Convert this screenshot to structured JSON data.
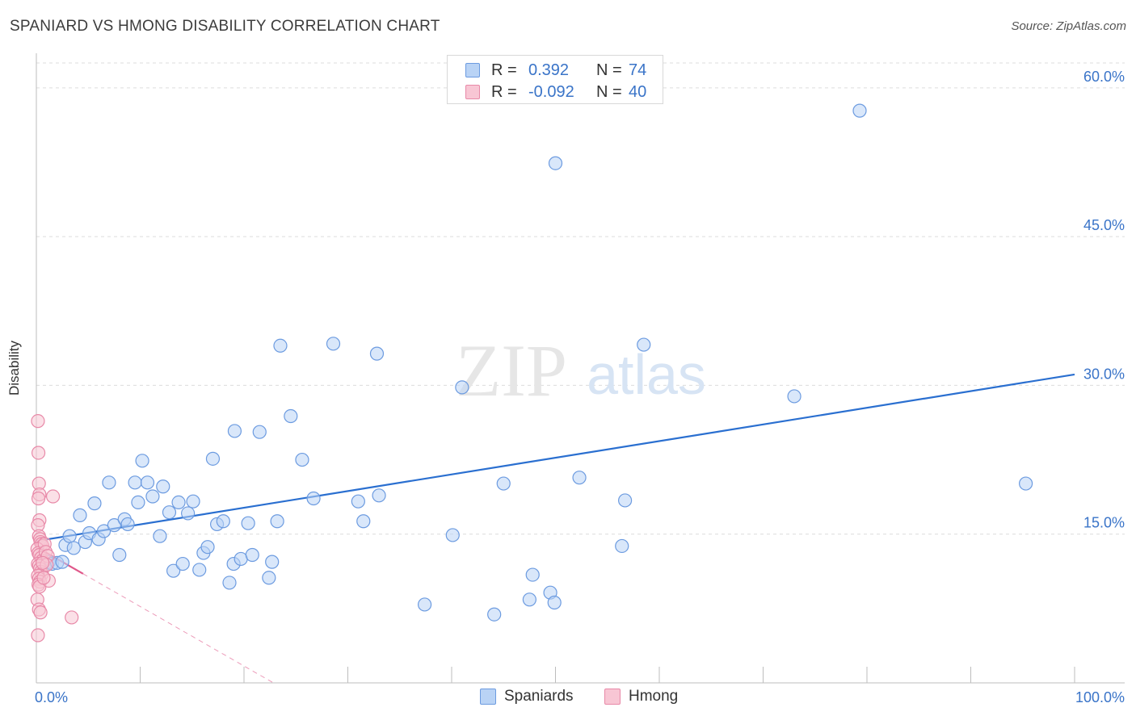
{
  "title": "SPANIARD VS HMONG DISABILITY CORRELATION CHART",
  "source": "Source: ZipAtlas.com",
  "watermark": {
    "zip": "ZIP",
    "atlas": "atlas"
  },
  "colors": {
    "spaniards_fill": "#b9d3f5",
    "spaniards_stroke": "#6c9be0",
    "spaniards_line": "#2a6fd0",
    "hmong_fill": "#f8c6d4",
    "hmong_stroke": "#e889a8",
    "hmong_line": "#e0588a",
    "axis_text": "#3a74c8",
    "grid": "#dcdcdc"
  },
  "legend": {
    "rows": [
      {
        "r_label": "R =",
        "r_value": "0.392",
        "n_label": "N =",
        "n_value": "74"
      },
      {
        "r_label": "R =",
        "r_value": "-0.092",
        "n_label": "N =",
        "n_value": "40"
      }
    ]
  },
  "bottom_legend": [
    "Spaniards",
    "Hmong"
  ],
  "chart_data": {
    "type": "scatter",
    "title": "SPANIARD VS HMONG DISABILITY CORRELATION CHART",
    "xlabel": "",
    "ylabel": "Disability",
    "xlim": [
      0,
      100
    ],
    "ylim": [
      0,
      63
    ],
    "x_tick_labels": [
      {
        "value": 0,
        "label": "0.0%"
      },
      {
        "value": 100,
        "label": "100.0%"
      }
    ],
    "y_tick_labels": [
      {
        "value": 15,
        "label": "15.0%"
      },
      {
        "value": 30,
        "label": "30.0%"
      },
      {
        "value": 45,
        "label": "45.0%"
      },
      {
        "value": 60,
        "label": "60.0%"
      }
    ],
    "series": [
      {
        "name": "Spaniards",
        "r": 0.392,
        "n": 74,
        "trend": {
          "x": [
            0,
            100
          ],
          "y": [
            14.3,
            31.1
          ],
          "dashed_x": null
        },
        "points": [
          [
            0.8,
            11.8
          ],
          [
            1.2,
            12.2
          ],
          [
            1.5,
            12.0
          ],
          [
            2.0,
            12.1
          ],
          [
            2.5,
            12.2
          ],
          [
            2.8,
            13.9
          ],
          [
            3.2,
            14.8
          ],
          [
            3.6,
            13.6
          ],
          [
            4.2,
            16.9
          ],
          [
            4.7,
            14.2
          ],
          [
            5.1,
            15.1
          ],
          [
            5.6,
            18.1
          ],
          [
            6.0,
            14.5
          ],
          [
            6.5,
            15.3
          ],
          [
            7.0,
            20.2
          ],
          [
            7.5,
            15.9
          ],
          [
            8.0,
            12.9
          ],
          [
            8.5,
            16.5
          ],
          [
            8.8,
            16.0
          ],
          [
            9.5,
            20.2
          ],
          [
            9.8,
            18.2
          ],
          [
            10.2,
            22.4
          ],
          [
            10.7,
            20.2
          ],
          [
            11.2,
            18.8
          ],
          [
            11.9,
            14.8
          ],
          [
            12.2,
            19.8
          ],
          [
            12.8,
            17.2
          ],
          [
            13.2,
            11.3
          ],
          [
            13.7,
            18.2
          ],
          [
            14.1,
            12.0
          ],
          [
            14.6,
            17.1
          ],
          [
            15.1,
            18.3
          ],
          [
            15.7,
            11.4
          ],
          [
            16.1,
            13.1
          ],
          [
            16.5,
            13.7
          ],
          [
            17.0,
            22.6
          ],
          [
            17.4,
            16.0
          ],
          [
            18.0,
            16.3
          ],
          [
            18.6,
            10.1
          ],
          [
            19.0,
            12.0
          ],
          [
            19.1,
            25.4
          ],
          [
            19.7,
            12.5
          ],
          [
            20.4,
            16.1
          ],
          [
            20.8,
            12.9
          ],
          [
            21.5,
            25.3
          ],
          [
            22.4,
            10.6
          ],
          [
            22.7,
            12.2
          ],
          [
            23.2,
            16.3
          ],
          [
            23.5,
            34.0
          ],
          [
            24.5,
            26.9
          ],
          [
            25.6,
            22.5
          ],
          [
            26.7,
            18.6
          ],
          [
            28.6,
            34.2
          ],
          [
            31.0,
            18.3
          ],
          [
            31.5,
            16.3
          ],
          [
            32.8,
            33.2
          ],
          [
            33.0,
            18.9
          ],
          [
            37.4,
            7.9
          ],
          [
            40.1,
            14.9
          ],
          [
            41.0,
            29.8
          ],
          [
            44.1,
            6.9
          ],
          [
            45.0,
            20.1
          ],
          [
            47.5,
            8.4
          ],
          [
            47.8,
            10.9
          ],
          [
            49.5,
            9.1
          ],
          [
            49.9,
            8.1
          ],
          [
            50.0,
            52.4
          ],
          [
            52.3,
            20.7
          ],
          [
            56.4,
            13.8
          ],
          [
            56.7,
            18.4
          ],
          [
            58.5,
            34.1
          ],
          [
            73.0,
            28.9
          ],
          [
            79.3,
            57.7
          ],
          [
            95.3,
            20.1
          ]
        ]
      },
      {
        "name": "Hmong",
        "r": -0.092,
        "n": 40,
        "trend": {
          "x": [
            0,
            4.5
          ],
          "y": [
            13.7,
            11.0
          ],
          "dashed_x": [
            4.5,
            100
          ]
        },
        "points": [
          [
            0.15,
            26.4
          ],
          [
            0.2,
            23.2
          ],
          [
            0.25,
            20.1
          ],
          [
            0.3,
            19.0
          ],
          [
            0.2,
            18.6
          ],
          [
            0.3,
            16.4
          ],
          [
            0.15,
            15.9
          ],
          [
            0.25,
            14.8
          ],
          [
            0.35,
            14.5
          ],
          [
            0.4,
            14.2
          ],
          [
            0.5,
            14.0
          ],
          [
            0.6,
            13.8
          ],
          [
            0.1,
            13.5
          ],
          [
            0.2,
            13.1
          ],
          [
            0.3,
            12.9
          ],
          [
            0.45,
            12.6
          ],
          [
            0.55,
            12.3
          ],
          [
            0.15,
            12.0
          ],
          [
            0.25,
            11.8
          ],
          [
            0.35,
            11.5
          ],
          [
            0.45,
            11.2
          ],
          [
            0.55,
            11.0
          ],
          [
            0.15,
            10.8
          ],
          [
            0.25,
            10.5
          ],
          [
            0.35,
            10.2
          ],
          [
            0.2,
            9.9
          ],
          [
            0.3,
            9.7
          ],
          [
            0.1,
            8.4
          ],
          [
            0.25,
            7.4
          ],
          [
            0.4,
            7.1
          ],
          [
            0.15,
            4.8
          ],
          [
            0.8,
            14.0
          ],
          [
            0.9,
            13.2
          ],
          [
            1.1,
            12.8
          ],
          [
            1.2,
            10.3
          ],
          [
            1.0,
            11.9
          ],
          [
            1.6,
            18.8
          ],
          [
            3.4,
            6.6
          ],
          [
            0.6,
            12.1
          ],
          [
            0.7,
            10.6
          ]
        ]
      }
    ]
  }
}
